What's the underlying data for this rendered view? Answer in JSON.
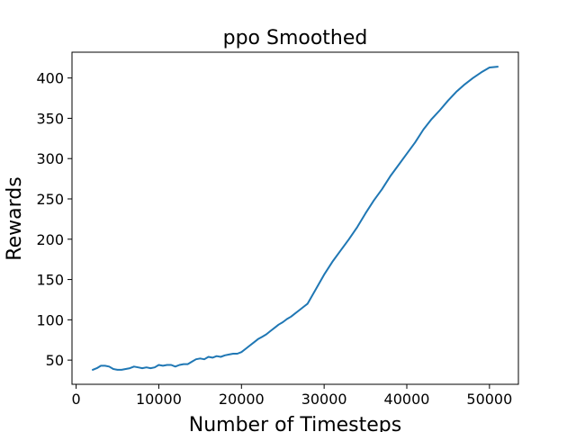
{
  "chart_data": {
    "type": "line",
    "title": "ppo Smoothed",
    "xlabel": "Number of Timesteps",
    "ylabel": "Rewards",
    "xlim": [
      -500,
      53500
    ],
    "ylim": [
      20,
      432
    ],
    "xticks": [
      0,
      10000,
      20000,
      30000,
      40000,
      50000
    ],
    "yticks": [
      50,
      100,
      150,
      200,
      250,
      300,
      350,
      400
    ],
    "grid": false,
    "color": "#1f77b4",
    "series": [
      {
        "x": [
          2000,
          2500,
          3000,
          3500,
          4000,
          4500,
          5000,
          5500,
          6000,
          6500,
          7000,
          7500,
          8000,
          8500,
          9000,
          9500,
          10000,
          10500,
          11000,
          11500,
          12000,
          12500,
          13000,
          13500,
          14000,
          14500,
          15000,
          15500,
          16000,
          16500,
          17000,
          17500,
          18000,
          18500,
          19000,
          19500,
          20000,
          20500,
          21000,
          21500,
          22000,
          22500,
          23000,
          23500,
          24000,
          24500,
          25000,
          25500,
          26000,
          26500,
          27000,
          27500,
          28000,
          29000,
          30000,
          31000,
          32000,
          33000,
          34000,
          35000,
          36000,
          37000,
          38000,
          39000,
          40000,
          41000,
          42000,
          43000,
          44000,
          45000,
          46000,
          47000,
          48000,
          49000,
          50000,
          51000
        ],
        "y": [
          38,
          40,
          43,
          43,
          42,
          39,
          38,
          38,
          39,
          40,
          42,
          41,
          40,
          41,
          40,
          41,
          44,
          43,
          44,
          44,
          42,
          44,
          45,
          45,
          48,
          51,
          52,
          51,
          54,
          53,
          55,
          54,
          56,
          57,
          58,
          58,
          60,
          64,
          68,
          72,
          76,
          79,
          82,
          86,
          90,
          94,
          97,
          101,
          104,
          108,
          112,
          116,
          120,
          138,
          156,
          172,
          186,
          200,
          215,
          232,
          248,
          262,
          278,
          292,
          306,
          320,
          336,
          349,
          360,
          372,
          383,
          392,
          400,
          407,
          413,
          414
        ]
      }
    ]
  }
}
